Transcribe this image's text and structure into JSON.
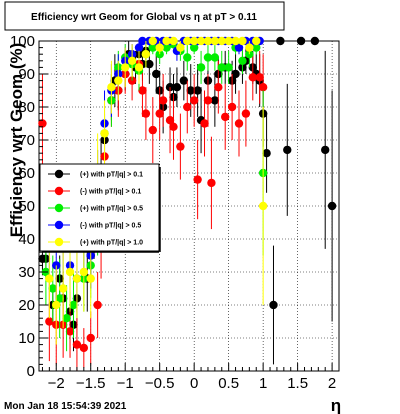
{
  "title": "Efficiency wrt Geom for Global vs   η at pT > 0.11",
  "footer_timestamp": "Mon Jan 18 15:54:39 2021",
  "chart_data": {
    "type": "scatter",
    "title": "Efficiency wrt Geom for Global vs   η at pT > 0.11",
    "xlabel": "η",
    "ylabel": "Efficiency wrt Geom (%)",
    "xlim": [
      -2.25,
      2.1
    ],
    "ylim": [
      0,
      100
    ],
    "xticks": [
      -2,
      -1.5,
      -1,
      -0.5,
      0,
      0.5,
      1,
      1.5,
      2
    ],
    "xtick_labels": [
      "−2",
      "−1.5",
      "−1",
      "−0.5",
      "0",
      "0.5",
      "1",
      "1.5",
      "2"
    ],
    "yticks": [
      0,
      10,
      20,
      30,
      40,
      50,
      60,
      70,
      80,
      90,
      100
    ],
    "grid": true,
    "legend_position": "left-middle",
    "series": [
      {
        "name": "(+) with pT/|q| > 0.1",
        "color": "#000000",
        "points": [
          [
            -2.2,
            34,
            5
          ],
          [
            -2.15,
            34,
            6
          ],
          [
            -2.05,
            20,
            6
          ],
          [
            -1.95,
            28,
            7
          ],
          [
            -1.9,
            22,
            8
          ],
          [
            -1.8,
            18,
            6
          ],
          [
            -1.75,
            14,
            8
          ],
          [
            -1.7,
            22,
            8
          ],
          [
            -1.55,
            28,
            10
          ],
          [
            -1.5,
            35,
            8
          ],
          [
            -1.45,
            42,
            8
          ],
          [
            -1.35,
            60,
            10
          ],
          [
            -1.3,
            70,
            8
          ],
          [
            -1.2,
            82,
            6
          ],
          [
            -1.15,
            88,
            8
          ],
          [
            -1.1,
            85,
            6
          ],
          [
            -1.0,
            90,
            5
          ],
          [
            -0.95,
            96,
            4
          ],
          [
            -0.9,
            94,
            5
          ],
          [
            -0.85,
            92,
            5
          ],
          [
            -0.8,
            96,
            4
          ],
          [
            -0.75,
            93,
            5
          ],
          [
            -0.7,
            97,
            3
          ],
          [
            -0.65,
            93,
            6
          ],
          [
            -0.55,
            90,
            6
          ],
          [
            -0.5,
            85,
            6
          ],
          [
            -0.45,
            80,
            8
          ],
          [
            -0.35,
            86,
            6
          ],
          [
            -0.3,
            83,
            7
          ],
          [
            -0.25,
            86,
            6
          ],
          [
            -0.15,
            88,
            6
          ],
          [
            -0.05,
            85,
            8
          ],
          [
            0.05,
            85,
            8
          ],
          [
            0.1,
            76,
            10
          ],
          [
            0.2,
            88,
            6
          ],
          [
            0.3,
            82,
            8
          ],
          [
            0.35,
            90,
            5
          ],
          [
            0.45,
            92,
            5
          ],
          [
            0.55,
            88,
            6
          ],
          [
            0.6,
            90,
            6
          ],
          [
            0.7,
            92,
            5
          ],
          [
            0.75,
            94,
            4
          ],
          [
            0.85,
            92,
            5
          ],
          [
            0.9,
            90,
            6
          ],
          [
            0.95,
            88,
            8
          ],
          [
            1.0,
            78,
            10
          ],
          [
            1.05,
            66,
            12
          ],
          [
            1.15,
            20,
            18
          ],
          [
            1.25,
            100,
            0
          ],
          [
            1.35,
            67,
            20
          ],
          [
            1.55,
            100,
            0
          ],
          [
            1.75,
            100,
            0
          ],
          [
            1.9,
            67,
            30
          ],
          [
            2.0,
            50,
            35
          ]
        ]
      },
      {
        "name": "(-) with pT/|q| > 0.1",
        "color": "#ff0000",
        "points": [
          [
            -2.2,
            75,
            15
          ],
          [
            -2.1,
            15,
            12
          ],
          [
            -2.0,
            14,
            12
          ],
          [
            -1.9,
            14,
            10
          ],
          [
            -1.8,
            12,
            8
          ],
          [
            -1.7,
            8,
            8
          ],
          [
            -1.6,
            7,
            6
          ],
          [
            -1.5,
            10,
            8
          ],
          [
            -1.4,
            20,
            10
          ],
          [
            -1.35,
            40,
            12
          ],
          [
            -1.3,
            65,
            12
          ],
          [
            -1.2,
            82,
            8
          ],
          [
            -1.1,
            85,
            8
          ],
          [
            -1.0,
            90,
            6
          ],
          [
            -0.9,
            88,
            6
          ],
          [
            -0.8,
            93,
            5
          ],
          [
            -0.75,
            85,
            8
          ],
          [
            -0.7,
            78,
            8
          ],
          [
            -0.6,
            73,
            10
          ],
          [
            -0.5,
            78,
            8
          ],
          [
            -0.45,
            82,
            8
          ],
          [
            -0.35,
            76,
            10
          ],
          [
            -0.3,
            74,
            10
          ],
          [
            -0.2,
            68,
            10
          ],
          [
            -0.1,
            80,
            8
          ],
          [
            0.0,
            82,
            8
          ],
          [
            0.05,
            58,
            12
          ],
          [
            0.15,
            75,
            10
          ],
          [
            0.2,
            82,
            8
          ],
          [
            0.25,
            57,
            14
          ],
          [
            0.35,
            86,
            8
          ],
          [
            0.45,
            77,
            10
          ],
          [
            0.55,
            80,
            10
          ],
          [
            0.65,
            75,
            10
          ],
          [
            0.75,
            78,
            10
          ],
          [
            0.85,
            89,
            7
          ],
          [
            0.95,
            89,
            8
          ],
          [
            1.0,
            86,
            10
          ]
        ]
      },
      {
        "name": "(+) with pT/|q| > 0.5",
        "color": "#00ee00",
        "points": [
          [
            -2.15,
            30,
            10
          ],
          [
            -2.05,
            25,
            10
          ],
          [
            -1.95,
            22,
            12
          ],
          [
            -1.85,
            16,
            10
          ],
          [
            -1.75,
            20,
            10
          ],
          [
            -1.6,
            28,
            10
          ],
          [
            -1.5,
            32,
            10
          ],
          [
            -1.4,
            45,
            10
          ],
          [
            -1.3,
            72,
            8
          ],
          [
            -1.2,
            82,
            8
          ],
          [
            -1.1,
            92,
            5
          ],
          [
            -1.0,
            95,
            4
          ],
          [
            -0.9,
            93,
            5
          ],
          [
            -0.8,
            91,
            6
          ],
          [
            -0.7,
            96,
            4
          ],
          [
            -0.6,
            98,
            2
          ],
          [
            -0.5,
            96,
            3
          ],
          [
            -0.4,
            98,
            2
          ],
          [
            -0.3,
            99,
            1
          ],
          [
            -0.2,
            97,
            3
          ],
          [
            -0.1,
            95,
            4
          ],
          [
            0.0,
            98,
            2
          ],
          [
            0.1,
            92,
            5
          ],
          [
            0.2,
            95,
            4
          ],
          [
            0.3,
            95,
            4
          ],
          [
            0.4,
            92,
            5
          ],
          [
            0.5,
            92,
            5
          ],
          [
            0.6,
            98,
            2
          ],
          [
            0.7,
            94,
            4
          ],
          [
            0.8,
            96,
            4
          ],
          [
            0.9,
            98,
            2
          ],
          [
            1.0,
            60,
            25
          ]
        ]
      },
      {
        "name": "(-) with pT/|q| > 0.5",
        "color": "#0000ff",
        "points": [
          [
            -2.1,
            38,
            10
          ],
          [
            -2.0,
            32,
            10
          ],
          [
            -1.9,
            40,
            10
          ],
          [
            -1.8,
            32,
            10
          ],
          [
            -1.7,
            28,
            10
          ],
          [
            -1.6,
            40,
            12
          ],
          [
            -1.5,
            35,
            10
          ],
          [
            -1.4,
            55,
            12
          ],
          [
            -1.3,
            75,
            10
          ],
          [
            -1.2,
            85,
            8
          ],
          [
            -1.1,
            90,
            6
          ],
          [
            -1.0,
            94,
            4
          ],
          [
            -0.9,
            96,
            3
          ],
          [
            -0.8,
            98,
            2
          ],
          [
            -0.75,
            100,
            0
          ],
          [
            -0.65,
            100,
            0
          ],
          [
            -0.55,
            100,
            0
          ],
          [
            -0.45,
            100,
            0
          ],
          [
            -0.35,
            100,
            0
          ],
          [
            -0.25,
            97,
            3
          ],
          [
            -0.15,
            100,
            0
          ],
          [
            -0.05,
            100,
            0
          ],
          [
            0.05,
            100,
            0
          ],
          [
            0.15,
            100,
            0
          ],
          [
            0.25,
            100,
            0
          ],
          [
            0.35,
            100,
            0
          ],
          [
            0.45,
            100,
            0
          ],
          [
            0.55,
            100,
            0
          ],
          [
            0.65,
            98,
            2
          ],
          [
            0.75,
            100,
            0
          ],
          [
            0.85,
            100,
            0
          ],
          [
            0.95,
            100,
            0
          ]
        ]
      },
      {
        "name": "(+) with pT/|q| > 1.0",
        "color": "#ffff00",
        "points": [
          [
            -2.1,
            28,
            12
          ],
          [
            -2.0,
            20,
            12
          ],
          [
            -1.9,
            25,
            12
          ],
          [
            -1.8,
            30,
            12
          ],
          [
            -1.7,
            28,
            12
          ],
          [
            -1.6,
            30,
            12
          ],
          [
            -1.5,
            28,
            12
          ],
          [
            -1.4,
            60,
            12
          ],
          [
            -1.3,
            72,
            10
          ],
          [
            -1.2,
            86,
            8
          ],
          [
            -1.1,
            88,
            6
          ],
          [
            -1.0,
            92,
            6
          ],
          [
            -0.9,
            94,
            5
          ],
          [
            -0.8,
            92,
            5
          ],
          [
            -0.7,
            96,
            4
          ],
          [
            -0.6,
            100,
            0
          ],
          [
            -0.5,
            98,
            2
          ],
          [
            -0.4,
            100,
            0
          ],
          [
            -0.3,
            100,
            0
          ],
          [
            -0.2,
            98,
            2
          ],
          [
            -0.1,
            100,
            0
          ],
          [
            0.0,
            100,
            0
          ],
          [
            0.1,
            100,
            0
          ],
          [
            0.2,
            100,
            0
          ],
          [
            0.3,
            100,
            0
          ],
          [
            0.4,
            100,
            0
          ],
          [
            0.5,
            100,
            0
          ],
          [
            0.6,
            100,
            0
          ],
          [
            0.7,
            100,
            0
          ],
          [
            0.8,
            98,
            2
          ],
          [
            0.9,
            100,
            0
          ],
          [
            1.0,
            50,
            30
          ]
        ]
      }
    ]
  }
}
